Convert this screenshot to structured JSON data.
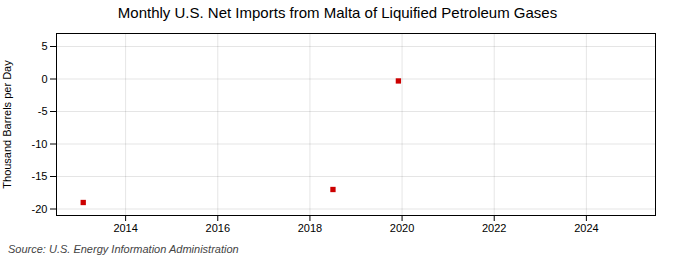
{
  "chart_data": {
    "type": "scatter",
    "title": "Monthly U.S. Net Imports from Malta of Liquified Petroleum Gases",
    "ylabel": "Thousand Barrels per Day",
    "source": "Source: U.S. Energy Information Administration",
    "x": [
      2013.08,
      2018.5,
      2019.92
    ],
    "values": [
      -19.0,
      -17.0,
      -0.3
    ],
    "color": "#cc0000",
    "marker": "square",
    "xlim": [
      2012.5,
      2025.5
    ],
    "ylim": [
      -21,
      7
    ],
    "xticks": [
      2014,
      2016,
      2018,
      2020,
      2022,
      2024
    ],
    "yticks": [
      -20,
      -15,
      -10,
      -5,
      0,
      5
    ],
    "grid": true
  }
}
